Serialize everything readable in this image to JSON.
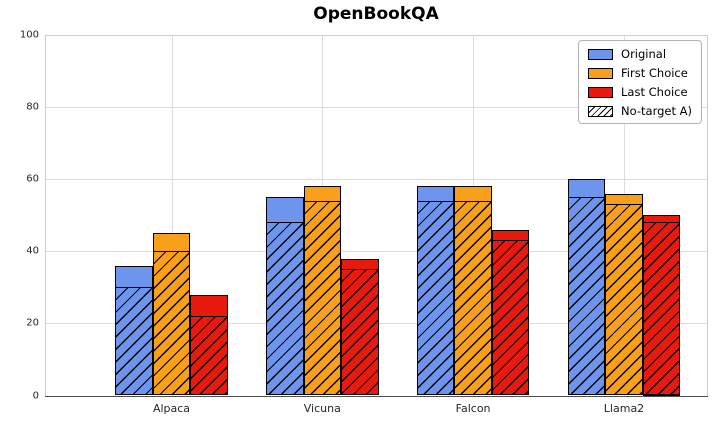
{
  "title": "OpenBookQA",
  "colors": {
    "original": "#6D95EE",
    "first_choice": "#F9A01B",
    "last_choice": "#E8190D",
    "bar_edge": "#000000",
    "grid": "#DCDCDC",
    "spine": "#CCCCCC",
    "bottom_spine": "#4D4D4D",
    "tick_text": "#262626",
    "legend_border": "#B3B3B3"
  },
  "chart_data": {
    "type": "bar",
    "title": "OpenBookQA",
    "categories": [
      "Alpaca",
      "Vicuna",
      "Falcon",
      "Llama2"
    ],
    "series": [
      {
        "name": "Original",
        "color_key": "original",
        "values": [
          36,
          55,
          58,
          60
        ],
        "no_target_values": [
          30,
          48,
          54,
          55
        ]
      },
      {
        "name": "First Choice",
        "color_key": "first_choice",
        "values": [
          45,
          58,
          58,
          56
        ],
        "no_target_values": [
          40,
          54,
          54,
          53
        ]
      },
      {
        "name": "Last Choice",
        "color_key": "last_choice",
        "values": [
          28,
          38,
          46,
          50
        ],
        "no_target_values": [
          22,
          35,
          43,
          48
        ]
      }
    ],
    "overlay_name": "No-target A)",
    "legend_labels": [
      "Original",
      "First Choice",
      "Last Choice",
      "No-target A)"
    ],
    "xlabel": "",
    "ylabel": "",
    "ylim": [
      0,
      100
    ],
    "yticks": [
      0,
      20,
      40,
      60,
      80,
      100
    ],
    "grid": true,
    "legend_position": "upper right"
  }
}
